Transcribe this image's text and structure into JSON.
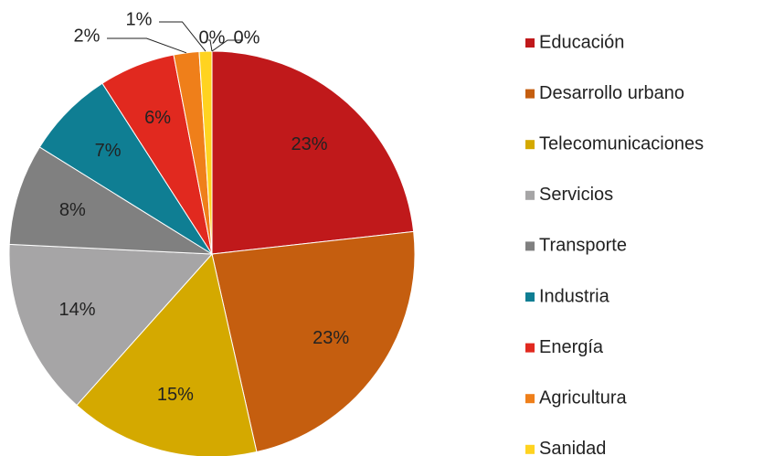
{
  "chart_data": {
    "type": "pie",
    "categories": [
      "Educación",
      "Desarrollo urbano",
      "Telecomunicaciones",
      "Servicios",
      "Transporte",
      "Industria",
      "Energía",
      "Agricultura",
      "Sanidad",
      null,
      null
    ],
    "values": [
      23,
      23,
      15,
      14,
      8,
      7,
      6,
      2,
      1,
      0,
      0
    ],
    "value_labels": [
      "23%",
      "23%",
      "15%",
      "14%",
      "8%",
      "7%",
      "6%",
      "2%",
      "1%",
      "0%",
      "0%"
    ],
    "colors": [
      "#c0191b",
      "#c55e0f",
      "#d4a900",
      "#a6a5a6",
      "#808080",
      "#0f7e93",
      "#e1291f",
      "#ef7f1a",
      "#ffd320"
    ],
    "legend": "right"
  }
}
